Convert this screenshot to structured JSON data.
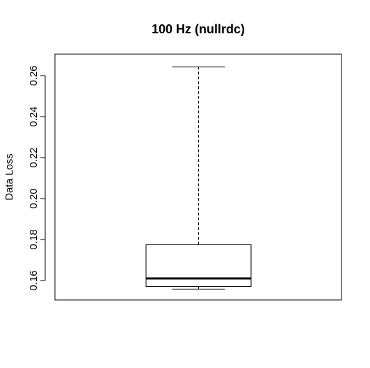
{
  "chart_data": {
    "type": "boxplot",
    "title": "100 Hz (nullrdc)",
    "xlabel": "",
    "ylabel": "Data Loss",
    "ylim": [
      0.1505,
      0.2705
    ],
    "yticks": [
      0.16,
      0.18,
      0.2,
      0.22,
      0.24,
      0.26
    ],
    "ytick_labels": [
      "0.16",
      "0.18",
      "0.20",
      "0.22",
      "0.24",
      "0.26"
    ],
    "boxes": [
      {
        "whisker_low": 0.1558,
        "q1": 0.1571,
        "median": 0.161,
        "q3": 0.1775,
        "whisker_high": 0.2643
      }
    ],
    "grid": false,
    "legend": "none"
  }
}
